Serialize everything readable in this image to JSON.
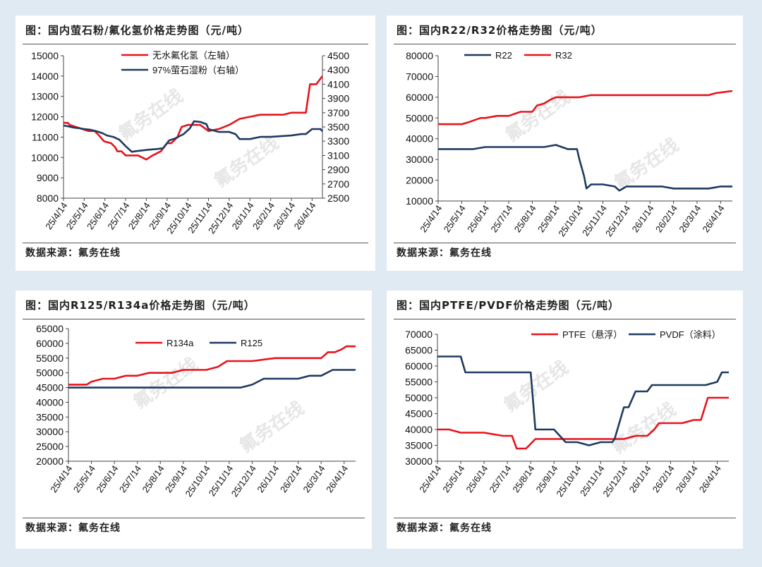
{
  "charts": [
    {
      "title": "图：国内萤石粉/氟化氢价格走势图（元/吨）",
      "source": "数据来源：氟务在线",
      "watermark": "氟务在线",
      "chart_data": {
        "type": "line",
        "x_ticks": [
          "25/4/14",
          "25/5/14",
          "25/6/14",
          "25/7/14",
          "25/8/14",
          "25/9/14",
          "25/10/14",
          "25/11/14",
          "25/12/14",
          "26/1/14",
          "26/2/14",
          "26/3/14",
          "26/4/14"
        ],
        "ylim": [
          8000,
          15000
        ],
        "y_ticks": [
          8000,
          9000,
          10000,
          11000,
          12000,
          13000,
          14000,
          15000
        ],
        "y2lim": [
          2500,
          4500
        ],
        "y2_ticks": [
          2500,
          2700,
          2900,
          3100,
          3300,
          3500,
          3700,
          3900,
          4100,
          4300,
          4500
        ],
        "legend_position": "top-left",
        "series": [
          {
            "name": "无水氟化氢（左轴）",
            "color": "#e8141c",
            "axis": "left",
            "x": [
              0,
              0.2,
              0.3,
              0.6,
              0.9,
              1.2,
              1.5,
              1.7,
              1.95,
              2.3,
              2.5,
              2.6,
              2.8,
              3.0,
              3.4,
              3.6,
              4.0,
              4.3,
              4.7,
              5.0,
              5.2,
              5.5,
              5.7,
              6.0,
              6.6,
              7.0,
              7.5,
              8.0,
              8.5,
              9.0,
              9.5,
              10.0,
              10.3,
              10.6,
              11.0,
              11.5,
              11.7,
              11.9,
              12.2,
              12.5
            ],
            "values": [
              11700,
              11700,
              11600,
              11500,
              11400,
              11300,
              11300,
              11100,
              10800,
              10700,
              10500,
              10300,
              10300,
              10100,
              10100,
              10100,
              9900,
              10100,
              10300,
              10700,
              10700,
              11000,
              11500,
              11600,
              11600,
              11300,
              11400,
              11600,
              11900,
              12000,
              12100,
              12100,
              12100,
              12100,
              12200,
              12200,
              12200,
              13600,
              13600,
              14000
            ]
          },
          {
            "name": "97%萤石湿粉（右轴）",
            "color": "#1f3a60",
            "axis": "right",
            "x": [
              0,
              0.2,
              0.5,
              0.8,
              1.0,
              1.3,
              1.6,
              1.9,
              2.1,
              2.4,
              2.7,
              3.0,
              3.3,
              3.5,
              3.8,
              4.1,
              4.5,
              4.8,
              5.1,
              5.4,
              5.6,
              5.8,
              6.1,
              6.3,
              6.6,
              6.9,
              7.0,
              7.5,
              7.8,
              8.0,
              8.3,
              8.5,
              9.0,
              9.5,
              10.0,
              10.5,
              11.0,
              11.5,
              11.7,
              12.0,
              12.4,
              12.5
            ],
            "values": [
              3520,
              3510,
              3490,
              3480,
              3470,
              3460,
              3440,
              3410,
              3380,
              3360,
              3320,
              3230,
              3150,
              3160,
              3170,
              3180,
              3190,
              3200,
              3310,
              3340,
              3370,
              3400,
              3480,
              3580,
              3570,
              3540,
              3470,
              3430,
              3430,
              3430,
              3400,
              3330,
              3330,
              3360,
              3360,
              3370,
              3380,
              3400,
              3400,
              3470,
              3470,
              3440
            ]
          }
        ]
      }
    },
    {
      "title": "图：国内R22/R32价格走势图（元/吨）",
      "source": "数据来源：氟务在线",
      "watermark": "氟务在线",
      "chart_data": {
        "type": "line",
        "x_ticks": [
          "25/4/14",
          "25/5/14",
          "25/6/14",
          "25/7/14",
          "25/8/14",
          "25/9/14",
          "25/10/14",
          "25/11/14",
          "25/12/14",
          "26/1/14",
          "26/2/14",
          "26/3/14",
          "26/4/14"
        ],
        "ylim": [
          10000,
          80000
        ],
        "y_ticks": [
          10000,
          20000,
          30000,
          40000,
          50000,
          60000,
          70000,
          80000
        ],
        "legend_position": "top-left",
        "series": [
          {
            "name": "R22",
            "color": "#1f3a60",
            "x": [
              0,
              1.0,
              1.5,
              2.0,
              3.0,
              4.0,
              4.5,
              5.0,
              5.5,
              5.9,
              6.0,
              6.1,
              6.2,
              6.3,
              6.5,
              7.0,
              7.5,
              7.7,
              8.0,
              9.0,
              9.5,
              10.0,
              10.5,
              11.0,
              11.5,
              12.0,
              12.5
            ],
            "values": [
              35000,
              35000,
              35000,
              36000,
              36000,
              36000,
              36000,
              37000,
              35000,
              35000,
              30000,
              26000,
              22000,
              16000,
              18000,
              18000,
              17000,
              15000,
              17000,
              17000,
              17000,
              16000,
              16000,
              16000,
              16000,
              17000,
              17000
            ]
          },
          {
            "name": "R32",
            "color": "#e8141c",
            "x": [
              0,
              1.0,
              1.3,
              1.8,
              2.0,
              2.5,
              3.0,
              3.5,
              4.0,
              4.2,
              4.5,
              4.8,
              5.0,
              5.5,
              6.0,
              6.5,
              7.0,
              8.0,
              9.0,
              10.0,
              11.0,
              11.5,
              11.8,
              12.5
            ],
            "values": [
              47000,
              47000,
              48000,
              50000,
              50000,
              51000,
              51000,
              53000,
              53000,
              56000,
              57000,
              59000,
              60000,
              60000,
              60000,
              61000,
              61000,
              61000,
              61000,
              61000,
              61000,
              61000,
              62000,
              63000
            ]
          }
        ]
      }
    },
    {
      "title": "图：国内R125/R134a价格走势图（元/吨）",
      "source": "数据来源：氟务在线",
      "watermark": "氟务在线",
      "chart_data": {
        "type": "line",
        "x_ticks": [
          "25/4/14",
          "25/5/14",
          "25/6/14",
          "25/7/14",
          "25/8/14",
          "25/9/14",
          "25/10/14",
          "25/11/14",
          "25/12/14",
          "26/1/14",
          "26/2/14",
          "26/3/14",
          "26/4/14"
        ],
        "ylim": [
          20000,
          65000
        ],
        "y_ticks": [
          20000,
          25000,
          30000,
          35000,
          40000,
          45000,
          50000,
          55000,
          60000,
          65000
        ],
        "legend_position": "top-right",
        "series": [
          {
            "name": "R134a",
            "color": "#e8141c",
            "x": [
              0,
              0.8,
              1.0,
              1.5,
              2.0,
              2.5,
              3.0,
              3.5,
              4.0,
              4.5,
              5.0,
              6.0,
              6.5,
              6.7,
              6.9,
              7.0,
              7.5,
              8.0,
              9.0,
              10.0,
              10.5,
              11.0,
              11.3,
              11.6,
              11.9,
              12.1,
              12.5
            ],
            "values": [
              46000,
              46000,
              47000,
              48000,
              48000,
              49000,
              49000,
              50000,
              50000,
              50000,
              51000,
              51000,
              52000,
              53000,
              54000,
              54000,
              54000,
              54000,
              55000,
              55000,
              55000,
              55000,
              57000,
              57000,
              58000,
              59000,
              59000
            ]
          },
          {
            "name": "R125",
            "color": "#1f3a60",
            "x": [
              0,
              2.0,
              3.0,
              4.0,
              5.0,
              6.0,
              7.0,
              7.5,
              8.0,
              8.5,
              9.0,
              9.5,
              10.0,
              10.5,
              11.0,
              11.5,
              12.0,
              12.5
            ],
            "values": [
              45000,
              45000,
              45000,
              45000,
              45000,
              45000,
              45000,
              45000,
              46000,
              48000,
              48000,
              48000,
              48000,
              49000,
              49000,
              51000,
              51000,
              51000
            ]
          }
        ]
      }
    },
    {
      "title": "图：国内PTFE/PVDF价格走势图（元/吨）",
      "source": "数据来源：氟务在线",
      "watermark": "氟务在线",
      "chart_data": {
        "type": "line",
        "x_ticks": [
          "25/4/14",
          "25/5/14",
          "25/6/14",
          "25/7/14",
          "25/8/14",
          "25/9/14",
          "25/10/14",
          "25/11/14",
          "25/12/14",
          "26/1/14",
          "26/2/14",
          "26/3/14",
          "26/4/14"
        ],
        "ylim": [
          30000,
          70000
        ],
        "y_ticks": [
          30000,
          35000,
          40000,
          45000,
          50000,
          55000,
          60000,
          65000,
          70000
        ],
        "legend_position": "top-right",
        "series": [
          {
            "name": "PTFE（悬浮）",
            "color": "#e8141c",
            "x": [
              0,
              0.5,
              1.0,
              2.0,
              2.8,
              3.2,
              3.4,
              3.8,
              4.2,
              4.5,
              5.0,
              6.0,
              7.0,
              7.5,
              8.0,
              8.5,
              9.0,
              9.3,
              9.5,
              10.0,
              10.5,
              11.0,
              11.3,
              11.6,
              12.0,
              12.5
            ],
            "values": [
              40000,
              40000,
              39000,
              39000,
              38000,
              38000,
              34000,
              34000,
              37000,
              37000,
              37000,
              37000,
              37000,
              37000,
              37000,
              38000,
              38000,
              40000,
              42000,
              42000,
              42000,
              43000,
              43000,
              50000,
              50000,
              50000
            ]
          },
          {
            "name": "PVDF（涂料）",
            "color": "#1f3a60",
            "x": [
              0,
              1.0,
              1.2,
              2.0,
              3.0,
              4.0,
              4.2,
              4.5,
              5.0,
              5.5,
              6.0,
              6.5,
              7.0,
              7.5,
              7.6,
              8.0,
              8.2,
              8.5,
              9.0,
              9.2,
              9.5,
              10.0,
              11.0,
              11.5,
              12.0,
              12.2,
              12.5
            ],
            "values": [
              63000,
              63000,
              58000,
              58000,
              58000,
              58000,
              40000,
              40000,
              40000,
              36000,
              36000,
              35000,
              36000,
              36000,
              37000,
              47000,
              47000,
              52000,
              52000,
              54000,
              54000,
              54000,
              54000,
              54000,
              55000,
              58000,
              58000
            ]
          }
        ]
      }
    }
  ]
}
